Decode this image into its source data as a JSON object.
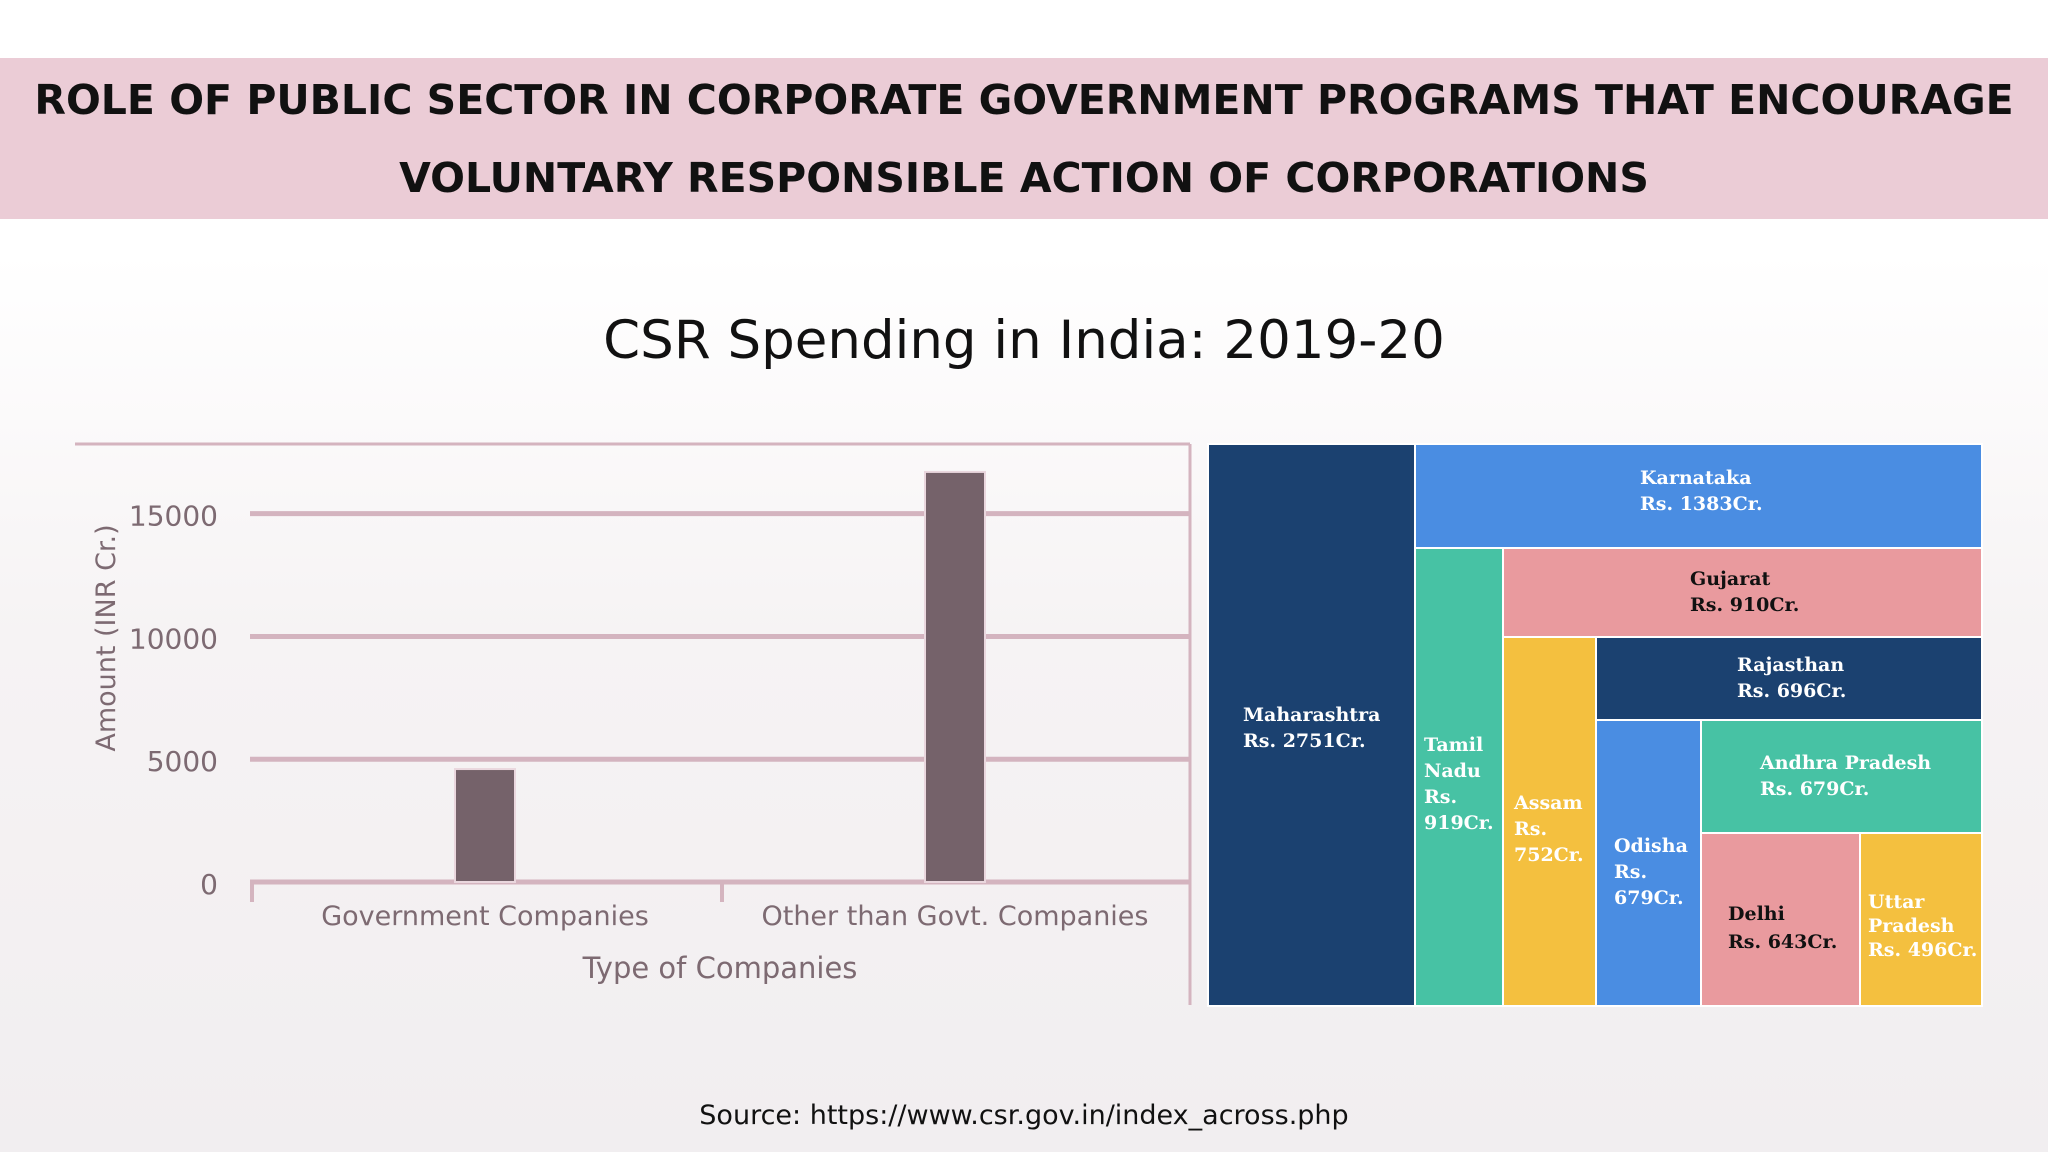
{
  "header": {
    "line1": "ROLE OF PUBLIC SECTOR IN CORPORATE GOVERNMENT PROGRAMS THAT ENCOURAGE",
    "line2": "VOLUNTARY RESPONSIBLE ACTION OF CORPORATIONS",
    "background": "#ebccd6"
  },
  "chart_title": "CSR Spending in India: 2019-20",
  "source": "Source: https://www.csr.gov.in/index_across.php",
  "chart_data": [
    {
      "type": "bar",
      "categories": [
        "Government Companies",
        "Other than Govt. Companies"
      ],
      "values": [
        4600,
        16700
      ],
      "xlabel": "Type of Companies",
      "ylabel": "Amount (INR Cr.)",
      "yticks": [
        0,
        5000,
        10000,
        15000
      ],
      "ylim": [
        0,
        18000
      ],
      "grid": true,
      "bar_color": "#75626a",
      "grid_color": "#d4b4bf"
    },
    {
      "type": "treemap",
      "cells": [
        {
          "name": "Maharashtra",
          "label": "Rs. 2751Cr.",
          "value": 2751,
          "color": "#1b4170"
        },
        {
          "name": "Karnataka",
          "label": "Rs. 1383Cr.",
          "value": 1383,
          "color": "#4a8de2"
        },
        {
          "name": "Tamil Nadu",
          "label": "Rs. 919Cr.",
          "value": 919,
          "color": "#47c2a4"
        },
        {
          "name": "Gujarat",
          "label": "Rs. 910Cr.",
          "value": 910,
          "color": "#e99a9e"
        },
        {
          "name": "Assam",
          "label": "Rs. 752Cr.",
          "value": 752,
          "color": "#f4c03f"
        },
        {
          "name": "Rajasthan",
          "label": "Rs. 696Cr.",
          "value": 696,
          "color": "#1b4170"
        },
        {
          "name": "Odisha",
          "label": "Rs. 679Cr.",
          "value": 679,
          "color": "#4a8de2"
        },
        {
          "name": "Andhra Pradesh",
          "label": "Rs. 679Cr.",
          "value": 679,
          "color": "#47c2a4"
        },
        {
          "name": "Delhi",
          "label": "Rs. 643Cr.",
          "value": 643,
          "color": "#e99a9e"
        },
        {
          "name": "Uttar Pradesh",
          "label": "Rs. 496Cr.",
          "value": 496,
          "color": "#f4c03f"
        }
      ]
    }
  ]
}
